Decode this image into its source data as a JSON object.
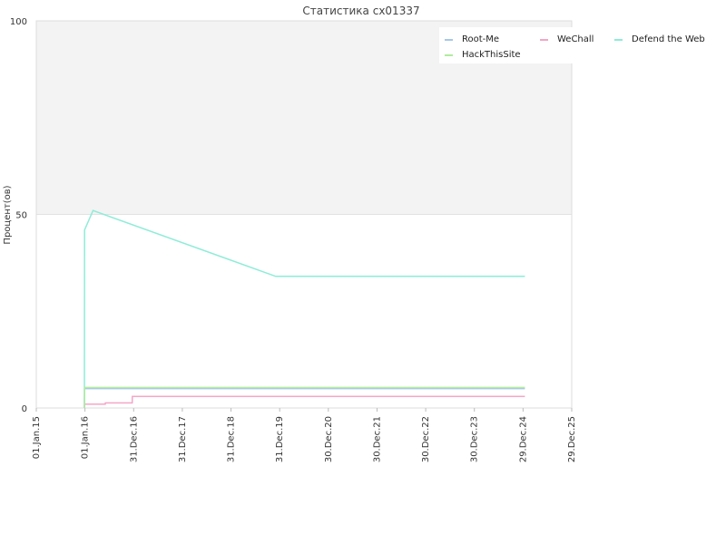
{
  "chart_data": {
    "type": "line",
    "title": "Статистика cx01337",
    "xlabel": "",
    "ylabel": "Процент(ов)",
    "ylim": [
      0,
      100
    ],
    "yticks": [
      0,
      50,
      100
    ],
    "xlim": [
      "2015-01-01",
      "2025-12-29"
    ],
    "xticks": [
      "01.Jan.15",
      "01.Jan.16",
      "31.Dec.16",
      "31.Dec.17",
      "31.Dec.18",
      "31.Dec.19",
      "30.Dec.20",
      "30.Dec.21",
      "30.Dec.22",
      "30.Dec.23",
      "29.Dec.24",
      "29.Dec.25"
    ],
    "xtick_dates": [
      "2015-01-01",
      "2016-01-01",
      "2016-12-31",
      "2017-12-31",
      "2018-12-31",
      "2019-12-31",
      "2020-12-30",
      "2021-12-30",
      "2022-12-30",
      "2023-12-30",
      "2024-12-29",
      "2025-12-29"
    ],
    "grid": "horizontal",
    "band_above": 50,
    "legend_position": "top-right",
    "series": [
      {
        "name": "Root-Me",
        "color": "#a8c8e8",
        "points": [
          [
            "2015-12-28",
            0
          ],
          [
            "2015-12-29",
            5
          ],
          [
            "2025-01-12",
            5
          ]
        ]
      },
      {
        "name": "WeChall",
        "color": "#f4a6c6",
        "points": [
          [
            "2015-12-28",
            0
          ],
          [
            "2015-12-29",
            1
          ],
          [
            "2016-06-01",
            1
          ],
          [
            "2016-06-02",
            1.3
          ],
          [
            "2016-12-20",
            1.3
          ],
          [
            "2016-12-21",
            3
          ],
          [
            "2025-01-12",
            3
          ]
        ]
      },
      {
        "name": "Defend the Web",
        "color": "#8eecd8",
        "points": [
          [
            "2015-12-28",
            0
          ],
          [
            "2015-12-29",
            46
          ],
          [
            "2016-03-01",
            51
          ],
          [
            "2019-12-01",
            34
          ],
          [
            "2025-01-12",
            34
          ]
        ]
      },
      {
        "name": "HackThisSite",
        "color": "#b0ec9e",
        "points": [
          [
            "2015-12-28",
            0
          ],
          [
            "2015-12-29",
            5.3
          ],
          [
            "2025-01-12",
            5.3
          ]
        ]
      }
    ]
  }
}
